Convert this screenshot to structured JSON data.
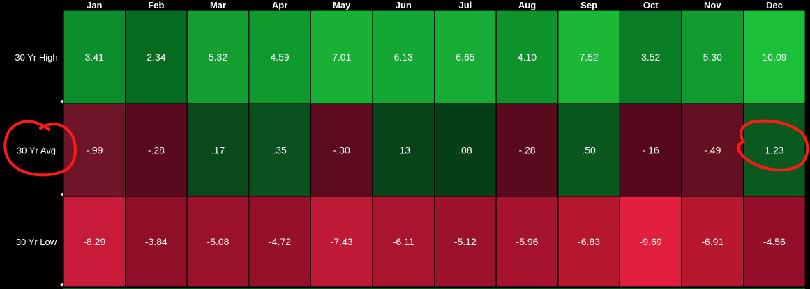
{
  "chart_data": {
    "type": "heatmap",
    "columns": [
      "Jan",
      "Feb",
      "Mar",
      "Apr",
      "May",
      "Jun",
      "Jul",
      "Aug",
      "Sep",
      "Oct",
      "Nov",
      "Dec"
    ],
    "rows": [
      {
        "label": "30 Yr High",
        "display": [
          "3.41",
          "2.34",
          "5.32",
          "4.59",
          "7.01",
          "6.13",
          "6.65",
          "4.10",
          "7.52",
          "3.52",
          "5.30",
          "10.09"
        ],
        "values": [
          3.41,
          2.34,
          5.32,
          4.59,
          7.01,
          6.13,
          6.65,
          4.1,
          7.52,
          3.52,
          5.3,
          10.09
        ],
        "colors": [
          "#0b8e2b",
          "#076a21",
          "#139f31",
          "#0f9a2e",
          "#19b036",
          "#15a733",
          "#17ac35",
          "#0d922c",
          "#1bb838",
          "#097d26",
          "#129b30",
          "#1cbf3a"
        ]
      },
      {
        "label": "30 Yr Avg",
        "display": [
          "-.99",
          "-.28",
          ".17",
          ".35",
          "-.30",
          ".13",
          ".08",
          "-.28",
          ".50",
          "-.16",
          "-.49",
          "1.23"
        ],
        "values": [
          -0.99,
          -0.28,
          0.17,
          0.35,
          -0.3,
          0.13,
          0.08,
          -0.28,
          0.5,
          -0.16,
          -0.49,
          1.23
        ],
        "colors": [
          "#6e1528",
          "#5a0a1e",
          "#09491b",
          "#0a511e",
          "#5c0b1f",
          "#074418",
          "#063f17",
          "#5a0a1e",
          "#0a571f",
          "#55081c",
          "#650f23",
          "#0a5a20"
        ]
      },
      {
        "label": "30 Yr Low",
        "display": [
          "-8.29",
          "-3.84",
          "-5.08",
          "-4.72",
          "-7.43",
          "-6.11",
          "-5.12",
          "-5.96",
          "-6.83",
          "-9.69",
          "-6.91",
          "-4.56"
        ],
        "values": [
          -8.29,
          -3.84,
          -5.08,
          -4.72,
          -7.43,
          -6.11,
          -5.12,
          -5.96,
          -6.83,
          -9.69,
          -6.91,
          -4.56
        ],
        "colors": [
          "#c81b3a",
          "#8e0f27",
          "#9a112b",
          "#971029",
          "#be1935",
          "#a9142f",
          "#9c122b",
          "#a5132e",
          "#b5172f",
          "#e21f3f",
          "#b8182f",
          "#930f29"
        ]
      }
    ],
    "annotations": [
      {
        "type": "hand-drawn circle",
        "color": "#ff1a1a",
        "target": "30 Yr Avg"
      },
      {
        "type": "hand-drawn circle",
        "color": "#ff1a1a",
        "target": "Dec / 30 Yr Avg"
      }
    ]
  }
}
